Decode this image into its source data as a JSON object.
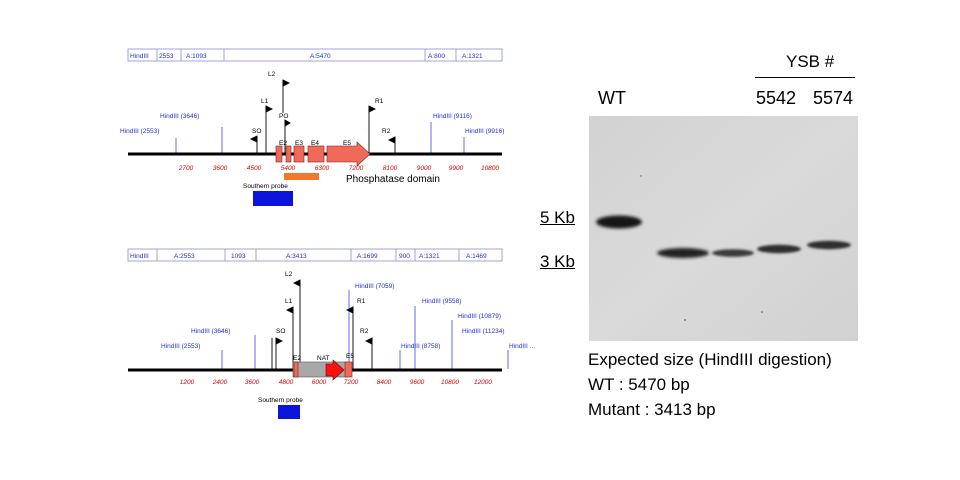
{
  "map_wt": {
    "fragments": [
      "HindIII",
      "2553",
      "A:1093",
      "A:5470",
      "A:800",
      "A:1321"
    ],
    "site_labels": [
      "HindIII (3646)",
      "HindIII (2553)",
      "HindIII (9116)",
      "HindIII (9916)"
    ],
    "primers": [
      "L2",
      "L1",
      "SO",
      "PO",
      "R1",
      "R2"
    ],
    "exons": [
      "E2",
      "E3",
      "E4",
      "E5"
    ],
    "ticks": [
      "2700",
      "3600",
      "4500",
      "5400",
      "6300",
      "7200",
      "8100",
      "9000",
      "9900",
      "10800"
    ],
    "domain_label": "Phosphatase domain",
    "probe_label": "Southern probe"
  },
  "map_mut": {
    "fragments": [
      "HindIII",
      "A:2553",
      "1093",
      "A:3413",
      "A:1699",
      "900",
      "A:1321",
      "A:1469"
    ],
    "site_labels": [
      "HindIII (7059)",
      "HindIII (9558)",
      "HindIII (3646)",
      "HindIII (10879)",
      "HindIII (11234)",
      "HindIII (2553)",
      "HindIII (8758)",
      "HindIII ..."
    ],
    "primers": [
      "L2",
      "L1",
      "SO",
      "R1",
      "R2"
    ],
    "exons": [
      "E2",
      "E5"
    ],
    "marker": "NAT",
    "ticks": [
      "1200",
      "2400",
      "3600",
      "4800",
      "6000",
      "7200",
      "8400",
      "9600",
      "10800",
      "12000"
    ],
    "probe_label": "Southern probe"
  },
  "gel": {
    "group_label": "YSB #",
    "lane_labels": [
      "WT",
      "5542",
      "5574"
    ],
    "size_markers": [
      "5 Kb",
      "3 Kb"
    ],
    "caption": [
      "Expected size (HindIII digestion)",
      "WT : 5470 bp",
      "Mutant : 3413 bp"
    ]
  },
  "colors": {
    "label_blue": "#1f2fd6",
    "tick_red": "#e00000",
    "exon_red": "#f06a5a",
    "domain_orange": "#ee7a2a",
    "probe_blue": "#0b14d8",
    "nat_red": "#ff1010",
    "cassette_grey": "#a8a8a8",
    "gel_bg": "#d4d4d4"
  }
}
